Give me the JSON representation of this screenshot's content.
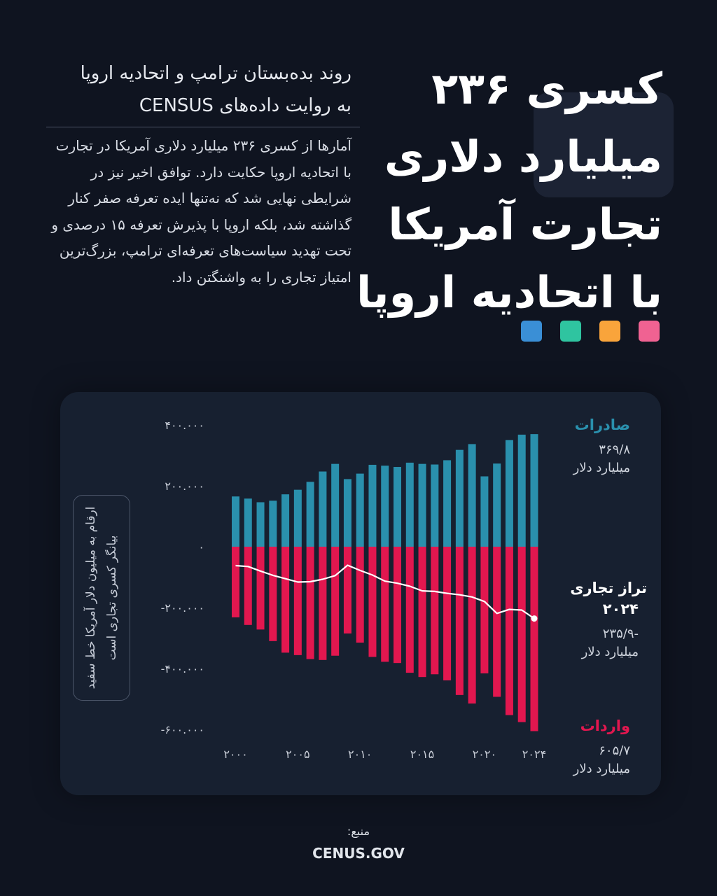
{
  "title": {
    "lines": [
      "کسری ۲۳۶",
      "میلیارد دلاری",
      "تجارت آمریکا",
      "با اتحادیه اروپا"
    ]
  },
  "color_dots": [
    "#f06292",
    "#f9a43b",
    "#2fc4a0",
    "#3a8fd6"
  ],
  "subtitle": {
    "line1": "روند بده‌بستان ترامپ و اتحادیه اروپا",
    "line2": "به روایت داده‌های CENSUS"
  },
  "body": "آمارها از کسری ۲۳۶ میلیارد دلاری آمریکا در تجارت با اتحادیه اروپا حکایت دارد. توافق اخیر نیز در شرایطی نهایی شد که نه‌تنها ایده تعرفه صفر کنار گذاشته شد، بلکه اروپا با پذیرش تعرفه ۱۵ درصدی و تحت تهدید سیاست‌های تعرفه‌ای ترامپ، بزرگ‌ترین امتیاز تجاری را به واشنگتن داد.",
  "note": "ارقام به میلیون دلار آمریکا خط سفید بیانگر کسری تجاری است",
  "side": {
    "exports": {
      "label": "صادرات",
      "value": "۳۶۹/۸",
      "unit": "میلیارد دلار"
    },
    "balance": {
      "label1": "تراز تجاری",
      "label2": "۲۰۲۴",
      "value": "-۲۳۵/۹",
      "unit": "میلیارد دلار"
    },
    "imports": {
      "label": "واردات",
      "value": "۶۰۵/۷",
      "unit": "میلیارد دلار"
    }
  },
  "source": {
    "label": "منبع:",
    "value": "CENUS.GOV"
  },
  "colors": {
    "exports": "#2a90ad",
    "imports": "#e2174f",
    "balance": "#ffffff",
    "background": "#0f1420",
    "panel": "#172030"
  },
  "chart_data": {
    "type": "bar",
    "x": [
      2000,
      2001,
      2002,
      2003,
      2004,
      2005,
      2006,
      2007,
      2008,
      2009,
      2010,
      2011,
      2012,
      2013,
      2014,
      2015,
      2016,
      2017,
      2018,
      2019,
      2020,
      2021,
      2022,
      2023,
      2024
    ],
    "series": [
      {
        "name": "صادرات",
        "kind": "bar",
        "values": [
          165000,
          158000,
          146000,
          151000,
          172000,
          187000,
          213000,
          247000,
          272000,
          222000,
          240000,
          269000,
          266000,
          262000,
          276000,
          272000,
          270000,
          284000,
          318000,
          337000,
          231000,
          273000,
          350000,
          368000,
          369800
        ]
      },
      {
        "name": "واردات",
        "kind": "bar",
        "values": [
          -232000,
          -257000,
          -272000,
          -310000,
          -348000,
          -356000,
          -369000,
          -372000,
          -358000,
          -285000,
          -315000,
          -362000,
          -378000,
          -382000,
          -414000,
          -428000,
          -419000,
          -439000,
          -487000,
          -515000,
          -416000,
          -493000,
          -553000,
          -576000,
          -605700
        ]
      },
      {
        "name": "تراز تجاری",
        "kind": "line",
        "values": [
          -62000,
          -65000,
          -80000,
          -94000,
          -105000,
          -116000,
          -115000,
          -107000,
          -95000,
          -61000,
          -78000,
          -93000,
          -113000,
          -120000,
          -130000,
          -145000,
          -147000,
          -153000,
          -158000,
          -165000,
          -180000,
          -219000,
          -206000,
          -208000,
          -235900
        ]
      }
    ],
    "y_ticks": [
      400000,
      200000,
      0,
      -200000,
      -400000,
      -600000
    ],
    "y_tick_labels": [
      "۴۰۰.۰۰۰",
      "۲۰۰.۰۰۰",
      "۰",
      "-۲۰۰.۰۰۰",
      "-۴۰۰.۰۰۰",
      "-۶۰۰.۰۰۰"
    ],
    "x_ticks": [
      2000,
      2005,
      2010,
      2015,
      2020,
      2024
    ],
    "x_tick_labels": [
      "۲۰۰۰",
      "۲۰۰۵",
      "۲۰۱۰",
      "۲۰۱۵",
      "۲۰۲۰",
      "۲۰۲۴"
    ],
    "ylim": [
      -620000,
      420000
    ],
    "grid": false
  }
}
